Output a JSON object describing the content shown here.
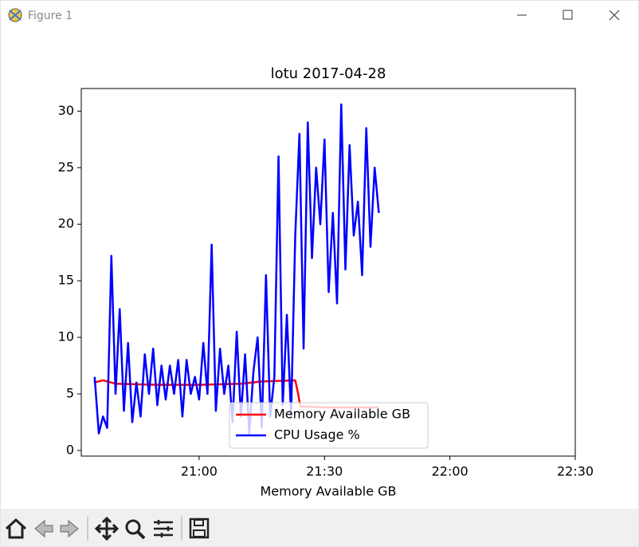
{
  "window": {
    "title": "Figure 1"
  },
  "chart_data": {
    "type": "line",
    "title": "lotu 2017-04-28",
    "xlabel": "Memory Available GB",
    "xlim": [
      1231.8,
      1350
    ],
    "xticks": [
      {
        "value": 1260,
        "label": "21:00"
      },
      {
        "value": 1290,
        "label": "21:30"
      },
      {
        "value": 1320,
        "label": "22:00"
      },
      {
        "value": 1350,
        "label": "22:30"
      }
    ],
    "ylim": [
      -0.5,
      32.0
    ],
    "yticks": [
      0,
      5,
      10,
      15,
      20,
      25,
      30
    ],
    "legend": "lower center",
    "series": [
      {
        "name": "Memory Available GB",
        "color": "#ff0000",
        "x": [
          1234.8,
          1237,
          1240,
          1250,
          1260,
          1270,
          1275,
          1283,
          1283.7,
          1284.2,
          1290,
          1303
        ],
        "values": [
          6.0,
          6.2,
          5.9,
          5.8,
          5.8,
          5.9,
          6.1,
          6.2,
          5.0,
          3.9,
          3.8,
          3.8
        ]
      },
      {
        "name": "CPU Usage %",
        "color": "#0000ff",
        "x": [
          1235,
          1236,
          1237,
          1238,
          1239,
          1240,
          1241,
          1242,
          1243,
          1244,
          1245,
          1246,
          1247,
          1248,
          1249,
          1250,
          1251,
          1252,
          1253,
          1254,
          1255,
          1256,
          1257,
          1258,
          1259,
          1260,
          1261,
          1262,
          1263,
          1264,
          1265,
          1266,
          1267,
          1268,
          1269,
          1270,
          1271,
          1272,
          1273,
          1274,
          1275,
          1276,
          1277,
          1278,
          1279,
          1280,
          1281,
          1282,
          1283,
          1284,
          1285,
          1286,
          1287,
          1288,
          1289,
          1290,
          1291,
          1292,
          1293,
          1294,
          1295,
          1296,
          1297,
          1298,
          1299,
          1300,
          1301,
          1302,
          1303
        ],
        "values": [
          6.5,
          1.5,
          3,
          2,
          17.2,
          5,
          12.5,
          3.5,
          9.5,
          2.5,
          6,
          3,
          8.5,
          5,
          9,
          4,
          7.5,
          4.5,
          7.5,
          5,
          8,
          3,
          8,
          5,
          6.5,
          4.5,
          9.5,
          5,
          18.2,
          3.5,
          9,
          5,
          7.5,
          2.5,
          10.5,
          3,
          8.5,
          1.5,
          7,
          10,
          2,
          15.5,
          3,
          6.5,
          26,
          4,
          12,
          3,
          19,
          28,
          9,
          29,
          17,
          25,
          20,
          27.5,
          14,
          21,
          13,
          30.6,
          16,
          27,
          19,
          22,
          15.5,
          28.5,
          18,
          25,
          21
        ]
      }
    ]
  }
}
